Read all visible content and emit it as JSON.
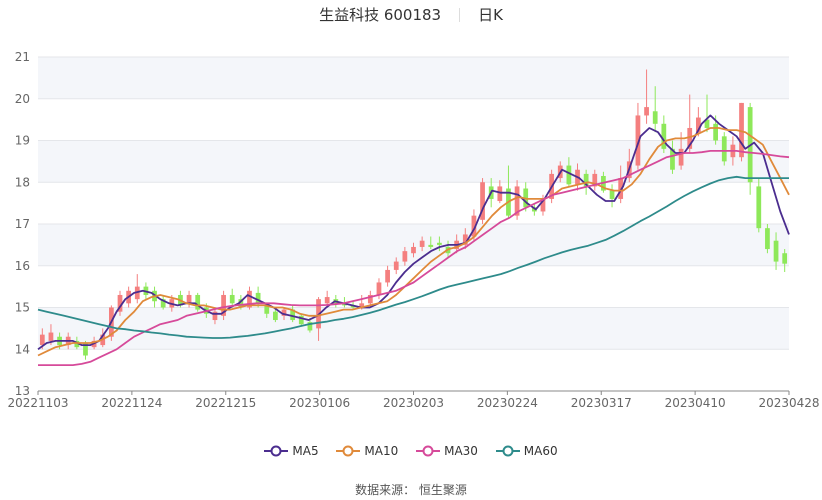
{
  "header": {
    "stock_name": "生益科技 600183",
    "period": "日K"
  },
  "legend": [
    {
      "label": "MA5",
      "color": "#4b2d8f"
    },
    {
      "label": "MA10",
      "color": "#e08a3a"
    },
    {
      "label": "MA30",
      "color": "#d64a9a"
    },
    {
      "label": "MA60",
      "color": "#2e8b8b"
    }
  ],
  "footer": {
    "source": "数据来源： 恒生聚源"
  },
  "colors": {
    "up": "#f47f7f",
    "down": "#8ee85a",
    "band": "#f4f6fa",
    "grid": "#e4e6ea",
    "axis": "#888888"
  },
  "chart_data": {
    "type": "candlestick",
    "title": "生益科技 600183 日K",
    "xlabel": "",
    "ylabel": "",
    "ylim": [
      13,
      21
    ],
    "yticks": [
      13,
      14,
      15,
      16,
      17,
      18,
      19,
      20,
      21
    ],
    "xticks": [
      "20221103",
      "20221124",
      "20221215",
      "20230106",
      "20230203",
      "20230224",
      "20230317",
      "20230410",
      "20230428"
    ],
    "grid": true,
    "legend_position": "bottom",
    "series": [
      {
        "name": "MA5",
        "values": [
          14.0,
          14.15,
          14.2,
          14.2,
          14.2,
          14.1,
          14.1,
          14.2,
          14.5,
          14.9,
          15.2,
          15.35,
          15.4,
          15.35,
          15.2,
          15.1,
          15.05,
          15.1,
          15.1,
          14.95,
          14.85,
          14.85,
          15.0,
          15.1,
          15.3,
          15.2,
          15.1,
          15.0,
          14.85,
          14.8,
          14.75,
          14.7,
          14.8,
          15.0,
          15.15,
          15.1,
          15.05,
          15.0,
          15.0,
          15.1,
          15.3,
          15.6,
          15.85,
          16.05,
          16.2,
          16.35,
          16.45,
          16.5,
          16.5,
          16.55,
          16.9,
          17.4,
          17.8,
          17.75,
          17.75,
          17.7,
          17.5,
          17.35,
          17.6,
          17.95,
          18.3,
          18.2,
          18.1,
          17.9,
          17.7,
          17.55,
          17.55,
          17.9,
          18.5,
          19.1,
          19.3,
          19.2,
          18.9,
          18.7,
          18.7,
          19.0,
          19.4,
          19.6,
          19.4,
          19.25,
          19.1,
          18.8,
          18.95,
          18.7,
          18.0,
          17.3,
          16.75
        ]
      },
      {
        "name": "MA10",
        "values": [
          13.85,
          13.95,
          14.05,
          14.1,
          14.15,
          14.15,
          14.15,
          14.2,
          14.3,
          14.45,
          14.7,
          14.9,
          15.15,
          15.25,
          15.3,
          15.25,
          15.2,
          15.1,
          15.05,
          15.05,
          15.0,
          14.95,
          14.95,
          15.0,
          15.05,
          15.05,
          15.05,
          15.0,
          15.0,
          14.95,
          14.85,
          14.8,
          14.8,
          14.85,
          14.9,
          14.95,
          14.95,
          15.0,
          15.05,
          15.1,
          15.15,
          15.3,
          15.5,
          15.7,
          15.9,
          16.1,
          16.25,
          16.4,
          16.45,
          16.55,
          16.7,
          16.95,
          17.2,
          17.4,
          17.55,
          17.65,
          17.6,
          17.6,
          17.6,
          17.7,
          17.85,
          17.9,
          17.95,
          18.0,
          17.95,
          17.85,
          17.8,
          17.8,
          17.95,
          18.2,
          18.55,
          18.85,
          19.0,
          19.05,
          19.05,
          19.1,
          19.2,
          19.3,
          19.3,
          19.25,
          19.25,
          19.2,
          19.05,
          18.9,
          18.5,
          18.1,
          17.7
        ]
      },
      {
        "name": "MA30",
        "values": [
          13.62,
          13.62,
          13.62,
          13.62,
          13.62,
          13.65,
          13.7,
          13.8,
          13.9,
          14.0,
          14.15,
          14.3,
          14.4,
          14.5,
          14.6,
          14.65,
          14.7,
          14.8,
          14.85,
          14.9,
          14.95,
          15.0,
          15.03,
          15.06,
          15.08,
          15.1,
          15.1,
          15.1,
          15.08,
          15.06,
          15.05,
          15.05,
          15.05,
          15.06,
          15.08,
          15.1,
          15.15,
          15.2,
          15.25,
          15.3,
          15.35,
          15.4,
          15.5,
          15.6,
          15.75,
          15.9,
          16.05,
          16.2,
          16.35,
          16.45,
          16.6,
          16.75,
          16.9,
          17.05,
          17.15,
          17.3,
          17.4,
          17.5,
          17.6,
          17.7,
          17.75,
          17.8,
          17.85,
          17.9,
          17.95,
          18.0,
          18.05,
          18.1,
          18.2,
          18.3,
          18.4,
          18.5,
          18.6,
          18.65,
          18.7,
          18.7,
          18.72,
          18.75,
          18.75,
          18.75,
          18.75,
          18.72,
          18.7,
          18.68,
          18.65,
          18.62,
          18.6
        ]
      },
      {
        "name": "MA60",
        "values": [
          14.95,
          14.9,
          14.85,
          14.8,
          14.75,
          14.7,
          14.65,
          14.6,
          14.55,
          14.5,
          14.48,
          14.45,
          14.43,
          14.4,
          14.38,
          14.35,
          14.33,
          14.3,
          14.29,
          14.28,
          14.27,
          14.27,
          14.28,
          14.3,
          14.32,
          14.35,
          14.38,
          14.42,
          14.46,
          14.5,
          14.55,
          14.6,
          14.63,
          14.66,
          14.7,
          14.73,
          14.77,
          14.82,
          14.87,
          14.93,
          15.0,
          15.07,
          15.13,
          15.2,
          15.27,
          15.35,
          15.43,
          15.5,
          15.55,
          15.6,
          15.65,
          15.7,
          15.75,
          15.8,
          15.87,
          15.95,
          16.02,
          16.1,
          16.18,
          16.25,
          16.32,
          16.38,
          16.43,
          16.48,
          16.55,
          16.62,
          16.72,
          16.83,
          16.95,
          17.07,
          17.18,
          17.3,
          17.42,
          17.55,
          17.67,
          17.78,
          17.88,
          17.97,
          18.05,
          18.1,
          18.13,
          18.1,
          18.1,
          18.1,
          18.1,
          18.1,
          18.1
        ]
      }
    ],
    "candles_note": "87 daily candles approx., red=up, green=down; values [open, close, low, high]",
    "candles": [
      [
        14.1,
        14.35,
        14.0,
        14.5
      ],
      [
        14.2,
        14.4,
        14.1,
        14.6
      ],
      [
        14.3,
        14.1,
        14.0,
        14.4
      ],
      [
        14.1,
        14.3,
        14.0,
        14.4
      ],
      [
        14.2,
        14.05,
        14.0,
        14.3
      ],
      [
        14.15,
        13.85,
        13.75,
        14.2
      ],
      [
        14.05,
        14.2,
        14.0,
        14.3
      ],
      [
        14.1,
        14.35,
        14.05,
        14.5
      ],
      [
        14.3,
        15.0,
        14.2,
        15.05
      ],
      [
        14.9,
        15.3,
        14.8,
        15.4
      ],
      [
        15.1,
        15.4,
        15.0,
        15.5
      ],
      [
        15.2,
        15.5,
        15.1,
        15.8
      ],
      [
        15.5,
        15.3,
        15.2,
        15.6
      ],
      [
        15.4,
        15.15,
        15.0,
        15.5
      ],
      [
        15.2,
        15.0,
        14.95,
        15.3
      ],
      [
        15.0,
        15.2,
        14.9,
        15.3
      ],
      [
        15.3,
        15.05,
        15.0,
        15.4
      ],
      [
        15.1,
        15.3,
        15.0,
        15.4
      ],
      [
        15.3,
        14.95,
        14.9,
        15.35
      ],
      [
        15.0,
        14.85,
        14.75,
        15.1
      ],
      [
        14.7,
        14.9,
        14.6,
        15.0
      ],
      [
        14.8,
        15.3,
        14.7,
        15.4
      ],
      [
        15.3,
        15.1,
        15.0,
        15.45
      ],
      [
        15.2,
        15.0,
        14.95,
        15.3
      ],
      [
        15.0,
        15.4,
        14.95,
        15.5
      ],
      [
        15.35,
        15.1,
        15.0,
        15.5
      ],
      [
        15.05,
        14.85,
        14.75,
        15.1
      ],
      [
        14.9,
        14.7,
        14.65,
        15.0
      ],
      [
        14.8,
        14.95,
        14.7,
        15.0
      ],
      [
        14.95,
        14.7,
        14.65,
        15.05
      ],
      [
        14.8,
        14.6,
        14.55,
        14.85
      ],
      [
        14.65,
        14.45,
        14.4,
        14.75
      ],
      [
        14.5,
        15.2,
        14.2,
        15.25
      ],
      [
        15.1,
        15.25,
        15.05,
        15.4
      ],
      [
        15.2,
        15.1,
        15.0,
        15.3
      ],
      [
        15.1,
        15.05,
        15.0,
        15.25
      ],
      [
        15.05,
        15.0,
        14.95,
        15.15
      ],
      [
        15.0,
        15.1,
        14.95,
        15.3
      ],
      [
        15.1,
        15.3,
        15.0,
        15.4
      ],
      [
        15.3,
        15.6,
        15.2,
        15.7
      ],
      [
        15.6,
        15.9,
        15.5,
        16.0
      ],
      [
        15.9,
        16.1,
        15.8,
        16.2
      ],
      [
        16.1,
        16.35,
        16.0,
        16.45
      ],
      [
        16.3,
        16.45,
        16.2,
        16.55
      ],
      [
        16.45,
        16.6,
        16.35,
        16.7
      ],
      [
        16.5,
        16.45,
        16.4,
        16.7
      ],
      [
        16.55,
        16.5,
        16.35,
        16.7
      ],
      [
        16.45,
        16.3,
        16.2,
        16.6
      ],
      [
        16.4,
        16.6,
        16.3,
        16.75
      ],
      [
        16.5,
        16.75,
        16.4,
        16.9
      ],
      [
        16.7,
        17.2,
        16.6,
        17.35
      ],
      [
        17.1,
        18.0,
        17.0,
        18.1
      ],
      [
        17.9,
        17.6,
        17.4,
        18.1
      ],
      [
        17.55,
        17.9,
        17.5,
        18.05
      ],
      [
        17.85,
        17.2,
        17.15,
        18.4
      ],
      [
        17.2,
        17.9,
        17.1,
        18.05
      ],
      [
        17.85,
        17.4,
        17.3,
        18.0
      ],
      [
        17.4,
        17.3,
        17.2,
        17.5
      ],
      [
        17.3,
        17.6,
        17.2,
        17.7
      ],
      [
        17.6,
        18.2,
        17.5,
        18.3
      ],
      [
        18.1,
        18.4,
        18.0,
        18.5
      ],
      [
        18.4,
        17.95,
        17.9,
        18.6
      ],
      [
        17.95,
        18.3,
        17.8,
        18.45
      ],
      [
        18.2,
        17.9,
        17.7,
        18.3
      ],
      [
        17.9,
        18.2,
        17.8,
        18.3
      ],
      [
        18.15,
        17.8,
        17.75,
        18.25
      ],
      [
        17.8,
        17.6,
        17.4,
        17.95
      ],
      [
        17.6,
        18.1,
        17.5,
        18.4
      ],
      [
        18.1,
        18.5,
        18.0,
        18.8
      ],
      [
        18.4,
        19.6,
        18.3,
        19.9
      ],
      [
        19.6,
        19.8,
        19.4,
        20.7
      ],
      [
        19.7,
        19.4,
        19.2,
        20.3
      ],
      [
        19.4,
        18.8,
        18.7,
        19.6
      ],
      [
        18.8,
        18.3,
        18.2,
        19.0
      ],
      [
        18.4,
        18.8,
        18.3,
        19.2
      ],
      [
        18.8,
        19.3,
        18.7,
        20.1
      ],
      [
        19.2,
        19.55,
        19.1,
        19.8
      ],
      [
        19.5,
        19.3,
        19.2,
        20.1
      ],
      [
        19.4,
        19.0,
        18.9,
        19.6
      ],
      [
        19.1,
        18.5,
        18.4,
        19.2
      ],
      [
        18.6,
        18.9,
        18.4,
        19.1
      ],
      [
        18.6,
        19.9,
        18.5,
        19.9
      ],
      [
        19.8,
        18.0,
        17.7,
        19.9
      ],
      [
        17.9,
        16.9,
        16.8,
        18.1
      ],
      [
        16.9,
        16.4,
        16.3,
        17.0
      ],
      [
        16.6,
        16.1,
        15.9,
        16.8
      ],
      [
        16.3,
        16.05,
        15.85,
        16.4
      ]
    ]
  }
}
